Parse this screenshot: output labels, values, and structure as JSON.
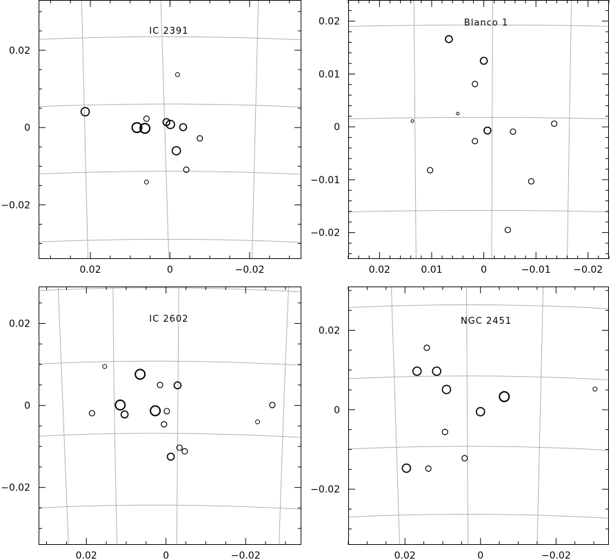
{
  "chart_data": [
    {
      "type": "scatter",
      "title": "IC 2391",
      "xlim": [
        0.033,
        -0.033
      ],
      "ylim": [
        -0.034,
        0.033
      ],
      "xticks": [
        0.02,
        0,
        -0.02
      ],
      "xtick_labels": [
        "0.02",
        "0",
        "−0.02"
      ],
      "yticks": [
        0.02,
        0,
        -0.02
      ],
      "ytick_labels": [
        "0.02",
        "0",
        "−0.02"
      ],
      "grid": true,
      "grid_meridians": [
        [
          [
            0.0222,
            0.033
          ],
          [
            0.0214,
            0.0
          ],
          [
            0.0206,
            -0.034
          ]
        ],
        [
          [
            -0.0222,
            0.033
          ],
          [
            -0.0214,
            0.0
          ],
          [
            -0.0206,
            -0.034
          ]
        ],
        [
          [
            0.0023,
            0.033
          ],
          [
            0.0003,
            -0.034
          ]
        ]
      ],
      "grid_parallels": [
        [
          [
            0.033,
            0.0228
          ],
          [
            0.0,
            0.0235
          ],
          [
            -0.033,
            0.0227
          ]
        ],
        [
          [
            0.033,
            0.0054
          ],
          [
            0.0,
            0.0061
          ],
          [
            -0.033,
            0.0053
          ]
        ],
        [
          [
            0.033,
            -0.012
          ],
          [
            0.0,
            -0.0113
          ],
          [
            -0.033,
            -0.0121
          ]
        ],
        [
          [
            0.033,
            -0.0296
          ],
          [
            0.0,
            -0.0289
          ],
          [
            -0.033,
            -0.0297
          ]
        ]
      ],
      "x": [
        -0.0019,
        0.0213,
        0.0059,
        0.0063,
        0.0009,
        -0.0001,
        -0.0033,
        0.0083,
        -0.0075,
        -0.0016,
        -0.0041,
        0.0059
      ],
      "y": [
        0.0137,
        0.0041,
        0.0023,
        -0.0002,
        0.0014,
        0.0008,
        0.0001,
        0.0,
        -0.0028,
        -0.006,
        -0.0109,
        -0.0141
      ],
      "sizes": [
        3,
        6,
        4,
        7,
        5,
        6,
        5,
        7,
        4,
        6,
        4,
        3
      ]
    },
    {
      "type": "scatter",
      "title": "Blanco 1",
      "xlim": [
        0.026,
        -0.024
      ],
      "ylim": [
        -0.025,
        0.024
      ],
      "xticks": [
        0.02,
        0.01,
        0,
        -0.01,
        -0.02
      ],
      "xtick_labels": [
        "0.02",
        "0.01",
        "0",
        "−0.01",
        "−0.02"
      ],
      "yticks": [
        0.02,
        0.01,
        0,
        -0.01,
        -0.02
      ],
      "ytick_labels": [
        "0.02",
        "0.01",
        "0",
        "−0.01",
        "−0.02"
      ],
      "grid": true,
      "grid_meridians": [
        [
          [
            0.0134,
            0.024
          ],
          [
            0.0132,
            0.0
          ],
          [
            0.013,
            -0.025
          ]
        ],
        [
          [
            -0.0017,
            0.024
          ],
          [
            -0.0016,
            0.0
          ],
          [
            -0.0015,
            -0.025
          ]
        ],
        [
          [
            -0.0168,
            0.024
          ],
          [
            -0.0164,
            0.0
          ],
          [
            -0.016,
            -0.025
          ]
        ]
      ],
      "grid_parallels": [
        [
          [
            0.026,
            0.019
          ],
          [
            0.0,
            0.0193
          ],
          [
            -0.024,
            0.019
          ]
        ],
        [
          [
            0.026,
            0.0015
          ],
          [
            0.0,
            0.0018
          ],
          [
            -0.024,
            0.0015
          ]
        ],
        [
          [
            0.026,
            -0.0161
          ],
          [
            0.0,
            -0.0158
          ],
          [
            -0.024,
            -0.0161
          ]
        ]
      ],
      "x": [
        0.0067,
        0.0,
        0.0017,
        0.005,
        0.0137,
        -0.0007,
        0.0017,
        -0.0056,
        -0.0135,
        0.0103,
        -0.0091,
        -0.0046
      ],
      "y": [
        0.0166,
        0.0125,
        0.0081,
        0.0025,
        0.0011,
        -0.0007,
        -0.0027,
        -0.0009,
        0.0006,
        -0.0082,
        -0.0103,
        -0.0195
      ],
      "sizes": [
        5,
        5,
        4,
        2,
        2,
        5,
        4,
        4,
        4,
        4,
        4,
        4
      ]
    },
    {
      "type": "scatter",
      "title": "IC 2602",
      "xlim": [
        0.032,
        -0.034
      ],
      "ylim": [
        -0.034,
        0.029
      ],
      "xticks": [
        0.02,
        0,
        -0.02
      ],
      "xtick_labels": [
        "0.02",
        "0",
        "−0.02"
      ],
      "yticks": [
        0.02,
        0,
        -0.02
      ],
      "ytick_labels": [
        "0.02",
        "0",
        "−0.02"
      ],
      "grid": true,
      "grid_meridians": [
        [
          [
            0.0271,
            0.029
          ],
          [
            0.0259,
            0.0
          ],
          [
            0.0245,
            -0.034
          ]
        ],
        [
          [
            0.0133,
            0.029
          ],
          [
            0.013,
            0.0
          ],
          [
            0.0123,
            -0.034
          ]
        ],
        [
          [
            -0.0032,
            0.029
          ],
          [
            -0.003,
            0.0
          ],
          [
            -0.0027,
            -0.034
          ]
        ],
        [
          [
            -0.0308,
            0.029
          ],
          [
            -0.0296,
            0.0
          ],
          [
            -0.0284,
            -0.034
          ]
        ]
      ],
      "grid_parallels": [
        [
          [
            0.032,
            0.028
          ],
          [
            0.0,
            0.0287
          ],
          [
            -0.034,
            0.0277
          ]
        ],
        [
          [
            0.032,
            0.0101
          ],
          [
            0.0,
            0.0108
          ],
          [
            -0.034,
            0.0098
          ]
        ],
        [
          [
            0.032,
            -0.0075
          ],
          [
            0.0,
            -0.0068
          ],
          [
            -0.034,
            -0.0078
          ]
        ],
        [
          [
            0.032,
            -0.025
          ],
          [
            0.0,
            -0.0243
          ],
          [
            -0.034,
            -0.0253
          ]
        ]
      ],
      "x": [
        0.0154,
        0.0065,
        0.0015,
        -0.0029,
        0.0186,
        0.0115,
        0.0104,
        0.0027,
        -0.0002,
        -0.0267,
        0.0005,
        -0.023,
        -0.0034,
        -0.0047,
        -0.0012
      ],
      "y": [
        0.0095,
        0.0076,
        0.005,
        0.0049,
        -0.0019,
        0.0001,
        -0.0022,
        -0.0013,
        -0.0014,
        0.0001,
        -0.0046,
        -0.004,
        -0.0103,
        -0.0112,
        -0.0125
      ],
      "sizes": [
        3,
        7,
        4,
        5,
        4,
        7,
        5,
        7,
        4,
        4,
        4,
        3,
        4,
        4,
        5
      ]
    },
    {
      "type": "scatter",
      "title": "NGC 2451",
      "xlim": [
        0.035,
        -0.034
      ],
      "ylim": [
        -0.034,
        0.031
      ],
      "xticks": [
        0.02,
        0,
        -0.02
      ],
      "xtick_labels": [
        "0.02",
        "0",
        "−0.02"
      ],
      "yticks": [
        0.02,
        0,
        -0.02
      ],
      "ytick_labels": [
        "0.02",
        "0",
        "−0.02"
      ],
      "grid": true,
      "grid_meridians": [
        [
          [
            0.0236,
            0.031
          ],
          [
            0.0225,
            0.0
          ],
          [
            0.0214,
            -0.034
          ]
        ],
        [
          [
            0.0037,
            0.031
          ],
          [
            0.0035,
            0.0
          ],
          [
            0.0033,
            -0.034
          ]
        ],
        [
          [
            -0.0166,
            0.031
          ],
          [
            -0.0158,
            0.0
          ],
          [
            -0.015,
            -0.034
          ]
        ]
      ],
      "grid_parallels": [
        [
          [
            0.035,
            0.0257
          ],
          [
            0.0,
            0.0264
          ],
          [
            -0.034,
            0.0254
          ]
        ],
        [
          [
            0.035,
            0.0078
          ],
          [
            0.0,
            0.0085
          ],
          [
            -0.034,
            0.0075
          ]
        ],
        [
          [
            0.035,
            -0.0099
          ],
          [
            0.0,
            -0.0092
          ],
          [
            -0.034,
            -0.0102
          ]
        ],
        [
          [
            0.035,
            -0.027
          ],
          [
            0.0,
            -0.0263
          ],
          [
            -0.034,
            -0.0273
          ]
        ]
      ],
      "x": [
        0.0142,
        0.0168,
        0.0116,
        0.009,
        -0.0063,
        -0.0303,
        0.0,
        0.0094,
        0.0042,
        0.0196,
        0.0138
      ],
      "y": [
        0.0156,
        0.0097,
        0.0097,
        0.0051,
        0.0033,
        0.0052,
        -0.0005,
        -0.0056,
        -0.0122,
        -0.0147,
        -0.0148
      ],
      "sizes": [
        4,
        6,
        6,
        6,
        7,
        3,
        6,
        4,
        4,
        6,
        4
      ]
    }
  ]
}
